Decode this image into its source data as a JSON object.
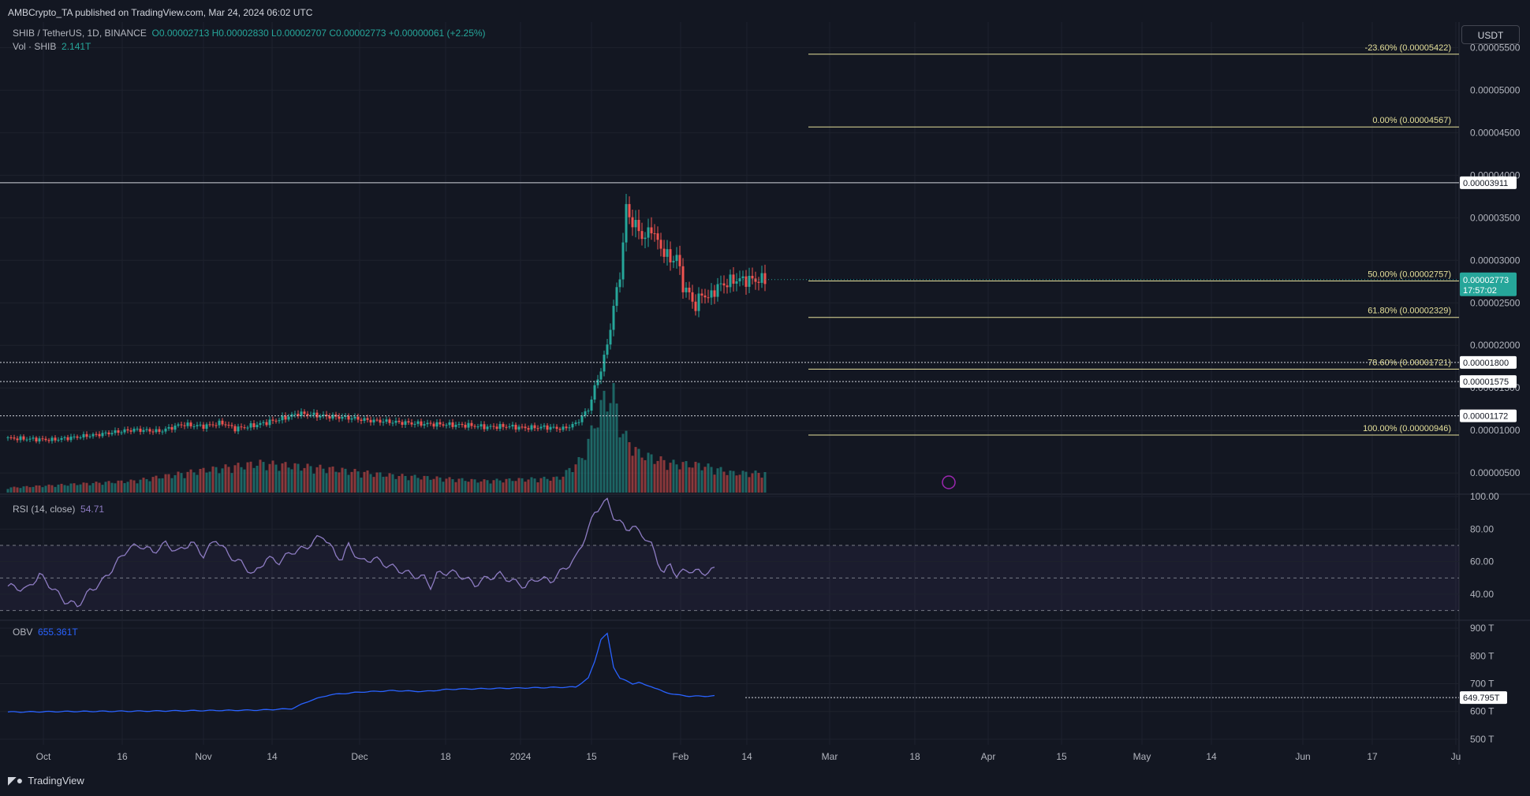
{
  "header": {
    "published": "AMBCrypto_TA published on TradingView.com, Mar 24, 2024 06:02 UTC",
    "symbol": "SHIB / TetherUS, 1D, BINANCE",
    "ohlc": "O0.00002713 H0.00002830 L0.00002707 C0.00002773 +0.00000061 (+2.25%)",
    "vol_label": "Vol · SHIB",
    "vol_value": "2.141T",
    "currency_button": "USDT"
  },
  "footer": {
    "brand": "TradingView"
  },
  "colors": {
    "bg": "#131722",
    "grid": "#1e222d",
    "up": "#26a69a",
    "down": "#ef5350",
    "fib": "#e5e09a",
    "rsi": "#8e7cc3",
    "obv": "#2962ff"
  },
  "chart_data": [
    {
      "type": "candlestick",
      "title": "SHIB / TetherUS, 1D, BINANCE",
      "price_axis_ticks": [
        "0.00000500",
        "0.00001000",
        "0.00001500",
        "0.00002000",
        "0.00002500",
        "0.00003000",
        "0.00003500",
        "0.00004000",
        "0.00004500",
        "0.00005000",
        "0.00005500"
      ],
      "ylim": [
        2.7e-06,
        5.8e-05
      ],
      "x_axis_ticks": [
        "Oct",
        "16",
        "Nov",
        "14",
        "Dec",
        "18",
        "2024",
        "15",
        "Feb",
        "14",
        "Mar",
        "18",
        "Apr",
        "15",
        "May",
        "14",
        "Jun",
        "17",
        "Ju"
      ],
      "current_price": "0.00002773",
      "countdown": "17:57:02",
      "fib_levels": [
        {
          "label": "-23.60% (0.00005422)",
          "value": 5.422e-05
        },
        {
          "label": "0.00% (0.00004567)",
          "value": 4.567e-05
        },
        {
          "label": "50.00% (0.00002757)",
          "value": 2.757e-05
        },
        {
          "label": "61.80% (0.00002329)",
          "value": 2.329e-05
        },
        {
          "label": "78.60% (0.00001721)",
          "value": 1.721e-05
        },
        {
          "label": "100.00% (0.00000946)",
          "value": 9.46e-06
        }
      ],
      "horizontal_levels": [
        {
          "label": "0.00003911",
          "value": 3.911e-05,
          "style": "solid"
        },
        {
          "label": "0.00001800",
          "value": 1.8e-05,
          "style": "dotted"
        },
        {
          "label": "0.00001575",
          "value": 1.575e-05,
          "style": "dotted"
        },
        {
          "label": "0.00001172",
          "value": 1.172e-05,
          "style": "dotted"
        }
      ],
      "price_path": [
        [
          0,
          9.1e-06
        ],
        [
          14,
          8.9e-06
        ],
        [
          28,
          9.5e-06
        ],
        [
          40,
          1.01e-05
        ],
        [
          48,
          9.9e-06
        ],
        [
          55,
          1.07e-05
        ],
        [
          62,
          1.05e-05
        ],
        [
          68,
          1.09e-05
        ],
        [
          72,
          1.02e-05
        ],
        [
          78,
          1.06e-05
        ],
        [
          86,
          1.13e-05
        ],
        [
          92,
          1.2e-05
        ],
        [
          100,
          1.17e-05
        ],
        [
          108,
          1.15e-05
        ],
        [
          114,
          1.12e-05
        ],
        [
          122,
          1.1e-05
        ],
        [
          130,
          1.08e-05
        ],
        [
          138,
          1.07e-05
        ],
        [
          146,
          1.06e-05
        ],
        [
          152,
          1.04e-05
        ],
        [
          158,
          1.05e-05
        ],
        [
          164,
          1.03e-05
        ],
        [
          170,
          1.04e-05
        ],
        [
          176,
          1.02e-05
        ],
        [
          180,
          1.08e-05
        ],
        [
          184,
          1.25e-05
        ],
        [
          186,
          1.5e-05
        ],
        [
          188,
          1.72e-05
        ],
        [
          190,
          2e-05
        ],
        [
          192,
          2.45e-05
        ],
        [
          194,
          2.83e-05
        ],
        [
          196,
          3.6e-05
        ],
        [
          198,
          3.45e-05
        ],
        [
          200,
          3.35e-05
        ],
        [
          202,
          3.25e-05
        ],
        [
          204,
          3.4e-05
        ],
        [
          206,
          3.2e-05
        ],
        [
          208,
          3.1e-05
        ],
        [
          210,
          3e-05
        ],
        [
          212,
          3.05e-05
        ],
        [
          214,
          2.7e-05
        ],
        [
          216,
          2.6e-05
        ],
        [
          218,
          2.45e-05
        ],
        [
          220,
          2.62e-05
        ],
        [
          222,
          2.55e-05
        ],
        [
          224,
          2.65e-05
        ],
        [
          226,
          2.71e-05
        ],
        [
          228,
          2.73e-05
        ],
        [
          230,
          2.77e-05
        ]
      ],
      "volume_profile": [
        [
          0,
          0.05
        ],
        [
          40,
          0.12
        ],
        [
          60,
          0.22
        ],
        [
          80,
          0.3
        ],
        [
          100,
          0.25
        ],
        [
          120,
          0.18
        ],
        [
          150,
          0.12
        ],
        [
          175,
          0.15
        ],
        [
          182,
          0.35
        ],
        [
          186,
          0.7
        ],
        [
          189,
          0.95
        ],
        [
          192,
          1.0
        ],
        [
          195,
          0.6
        ],
        [
          200,
          0.4
        ],
        [
          210,
          0.3
        ],
        [
          220,
          0.28
        ],
        [
          230,
          0.2
        ]
      ]
    },
    {
      "type": "line",
      "name": "RSI (14, close)",
      "current_value": "54.71",
      "ylim": [
        25,
        100
      ],
      "y_ticks": [
        "40.00",
        "60.00",
        "80.00",
        "100.00"
      ],
      "bands": [
        30,
        50,
        70
      ],
      "values": [
        [
          0,
          45
        ],
        [
          6,
          43
        ],
        [
          10,
          52
        ],
        [
          14,
          44
        ],
        [
          18,
          36
        ],
        [
          22,
          33
        ],
        [
          26,
          42
        ],
        [
          30,
          48
        ],
        [
          34,
          58
        ],
        [
          38,
          68
        ],
        [
          42,
          70
        ],
        [
          46,
          66
        ],
        [
          50,
          71
        ],
        [
          54,
          66
        ],
        [
          58,
          72
        ],
        [
          62,
          64
        ],
        [
          66,
          74
        ],
        [
          70,
          64
        ],
        [
          74,
          59
        ],
        [
          78,
          52
        ],
        [
          82,
          62
        ],
        [
          86,
          60
        ],
        [
          90,
          66
        ],
        [
          94,
          68
        ],
        [
          98,
          74
        ],
        [
          100,
          76
        ],
        [
          102,
          70
        ],
        [
          104,
          64
        ],
        [
          106,
          62
        ],
        [
          108,
          70
        ],
        [
          112,
          60
        ],
        [
          116,
          62
        ],
        [
          120,
          58
        ],
        [
          124,
          55
        ],
        [
          128,
          52
        ],
        [
          132,
          50
        ],
        [
          134,
          45
        ],
        [
          136,
          52
        ],
        [
          140,
          54
        ],
        [
          144,
          51
        ],
        [
          148,
          46
        ],
        [
          152,
          50
        ],
        [
          156,
          52
        ],
        [
          160,
          48
        ],
        [
          164,
          45
        ],
        [
          168,
          50
        ],
        [
          172,
          48
        ],
        [
          176,
          55
        ],
        [
          180,
          62
        ],
        [
          184,
          80
        ],
        [
          186,
          90
        ],
        [
          188,
          95
        ],
        [
          190,
          97
        ],
        [
          192,
          88
        ],
        [
          194,
          84
        ],
        [
          196,
          80
        ],
        [
          198,
          82
        ],
        [
          200,
          78
        ],
        [
          202,
          75
        ],
        [
          204,
          70
        ],
        [
          206,
          60
        ],
        [
          208,
          53
        ],
        [
          210,
          58
        ],
        [
          212,
          52
        ],
        [
          216,
          55
        ],
        [
          220,
          53
        ],
        [
          224,
          55
        ]
      ]
    },
    {
      "type": "line",
      "name": "OBV",
      "current_value": "655.361T",
      "level_label": "649.795T",
      "level_value": 649.795,
      "ylim": [
        480,
        920
      ],
      "y_ticks": [
        "500 T",
        "600 T",
        "700 T",
        "800 T",
        "900 T"
      ],
      "values": [
        [
          0,
          598
        ],
        [
          20,
          600
        ],
        [
          40,
          601
        ],
        [
          60,
          603
        ],
        [
          80,
          605
        ],
        [
          90,
          610
        ],
        [
          96,
          640
        ],
        [
          102,
          660
        ],
        [
          112,
          670
        ],
        [
          122,
          675
        ],
        [
          132,
          672
        ],
        [
          140,
          680
        ],
        [
          150,
          682
        ],
        [
          160,
          684
        ],
        [
          170,
          686
        ],
        [
          180,
          688
        ],
        [
          184,
          720
        ],
        [
          186,
          780
        ],
        [
          188,
          860
        ],
        [
          190,
          880
        ],
        [
          192,
          760
        ],
        [
          194,
          720
        ],
        [
          196,
          710
        ],
        [
          198,
          700
        ],
        [
          200,
          705
        ],
        [
          202,
          695
        ],
        [
          204,
          690
        ],
        [
          206,
          680
        ],
        [
          208,
          670
        ],
        [
          210,
          665
        ],
        [
          212,
          660
        ],
        [
          216,
          655
        ],
        [
          220,
          655
        ],
        [
          224,
          656
        ]
      ]
    }
  ]
}
